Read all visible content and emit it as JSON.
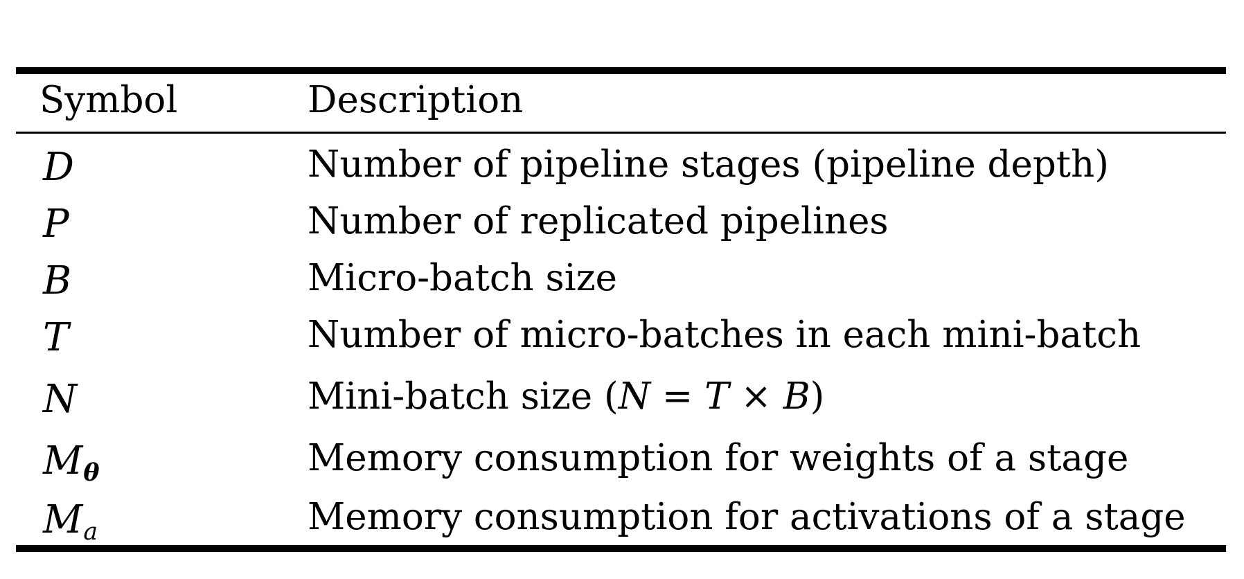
{
  "table": {
    "headers": {
      "symbol": "Symbol",
      "description": "Description"
    },
    "rows": [
      {
        "symbol": "D",
        "description": "Number of pipeline stages (pipeline depth)"
      },
      {
        "symbol": "P",
        "description": "Number of replicated pipelines"
      },
      {
        "symbol": "B",
        "description": "Micro-batch size"
      },
      {
        "symbol": "T",
        "description": "Number of micro-batches in each mini-batch"
      },
      {
        "symbol": "N",
        "description_prefix": "Mini-batch size",
        "formula": {
          "open": "(",
          "lhs": "N",
          "eq": "=",
          "a": "T",
          "times": "×",
          "b": "B",
          "close": ")"
        }
      },
      {
        "symbol": "M",
        "symbol_subscript": "θ",
        "description": "Memory consumption for weights of a stage"
      },
      {
        "symbol": "M",
        "symbol_subscript": "a",
        "description": "Memory consumption for activations of a stage"
      }
    ]
  }
}
